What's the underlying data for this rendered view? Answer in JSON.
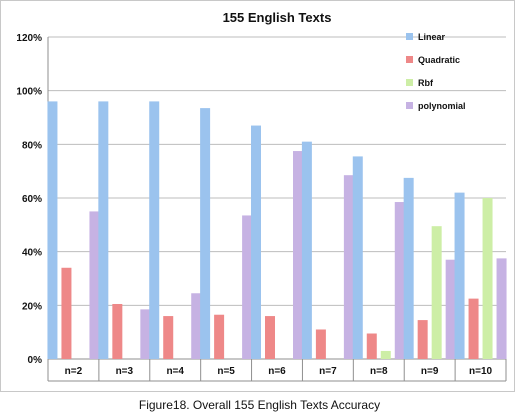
{
  "caption": "Figure18. Overall 155 English Texts Accuracy",
  "chart_data": {
    "type": "bar",
    "title": "155 English Texts",
    "xlabel": "",
    "ylabel": "",
    "ylim": [
      0,
      120
    ],
    "y_ticks": [
      0,
      20,
      40,
      60,
      80,
      100,
      120
    ],
    "y_tick_labels": [
      "0%",
      "20%",
      "40%",
      "60%",
      "80%",
      "100%",
      "120%"
    ],
    "grid": true,
    "legend_position": "top-right",
    "categories": [
      "n=2",
      "n=3",
      "n=4",
      "n=5",
      "n=6",
      "n=7",
      "n=8",
      "n=9",
      "n=10"
    ],
    "series": [
      {
        "name": "Linear",
        "color": "#9bc3ee",
        "values": [
          96,
          96,
          96,
          93.5,
          87,
          81,
          75.5,
          67.5,
          62
        ]
      },
      {
        "name": "Quadratic",
        "color": "#ee8888",
        "values": [
          34,
          20.5,
          16,
          16.5,
          16,
          11,
          9.5,
          14.5,
          22.5
        ]
      },
      {
        "name": "Rbf",
        "color": "#cdeea6",
        "values": [
          0,
          0,
          0,
          0,
          0,
          0,
          3,
          49.5,
          60
        ]
      },
      {
        "name": "polynomial",
        "color": "#c6b2e3",
        "values": [
          55,
          18.5,
          24.5,
          53.5,
          77.5,
          68.5,
          58.5,
          37,
          37.5
        ]
      }
    ]
  }
}
